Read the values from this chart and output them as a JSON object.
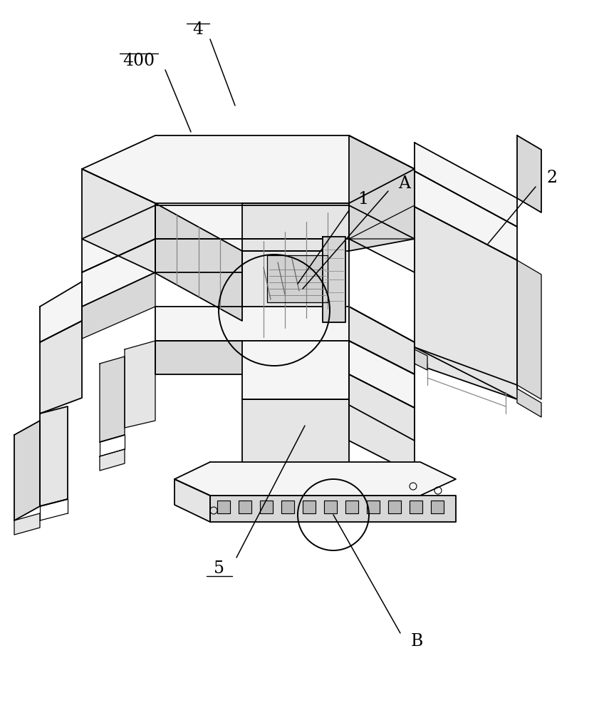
{
  "background_color": "#ffffff",
  "line_color": "#000000",
  "fig_width": 8.41,
  "fig_height": 10.0,
  "col_top": "#f5f5f5",
  "col_side1": "#e5e5e5",
  "col_side2": "#d8d8d8",
  "col_inner": "#c8c8c8",
  "lw_main": 1.3,
  "lw_inner": 0.9
}
